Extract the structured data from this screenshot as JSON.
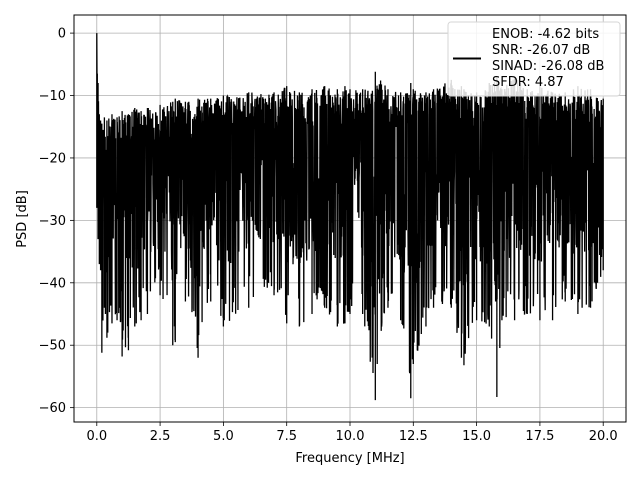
{
  "chart_data": {
    "type": "line",
    "title": "",
    "xlabel": "Frequency [MHz]",
    "ylabel": "PSD [dB]",
    "xlim": [
      -0.9,
      20.9
    ],
    "ylim": [
      -62.3,
      2.9
    ],
    "x_ticks": [
      0.0,
      2.5,
      5.0,
      7.5,
      10.0,
      12.5,
      15.0,
      17.5,
      20.0
    ],
    "x_tick_labels": [
      "0.0",
      "2.5",
      "5.0",
      "7.5",
      "10.0",
      "12.5",
      "15.0",
      "17.5",
      "20.0"
    ],
    "y_ticks": [
      0,
      -10,
      -20,
      -30,
      -40,
      -50,
      -60
    ],
    "y_tick_labels": [
      "0",
      "−10",
      "−20",
      "−30",
      "−40",
      "−50",
      "−60"
    ],
    "grid": true,
    "line_color": "#000000",
    "legend_position": "top-right",
    "legend_lines": [
      "ENOB: -4.62 bits",
      "SNR: -26.07 dB",
      "SINAD: -26.08 dB",
      "SFDR: 4.87"
    ],
    "series": [
      {
        "x": [
          0.0,
          0.02,
          0.05,
          0.1,
          0.15,
          0.2,
          0.3,
          0.4,
          0.6,
          0.8,
          1.0,
          1.25,
          1.5,
          1.75,
          2.0,
          2.5,
          3.0,
          3.1,
          3.5,
          4.0,
          4.5,
          5.0,
          6.0,
          7.0,
          7.5,
          8.0,
          8.5,
          9.0,
          9.5,
          9.8,
          10.0,
          10.5,
          11.0,
          11.5,
          12.0,
          12.4,
          12.5,
          13.0,
          13.3,
          14.0,
          14.4,
          14.5,
          15.0,
          15.5,
          15.8,
          16.0,
          16.5,
          17.0,
          17.5,
          18.0,
          18.5,
          19.0,
          19.5,
          20.0
        ],
        "upper": [
          0.0,
          -6.5,
          -8.0,
          -13.0,
          -14.0,
          -14.5,
          -13.5,
          -14.0,
          -13.0,
          -13.5,
          -12.5,
          -13.0,
          -12.0,
          -12.5,
          -12.0,
          -11.5,
          -11.0,
          -10.5,
          -11.0,
          -10.5,
          -10.5,
          -10.0,
          -9.5,
          -9.5,
          -8.5,
          -9.5,
          -9.0,
          -8.5,
          -9.0,
          -8.5,
          -9.0,
          -9.0,
          -6.2,
          -9.0,
          -9.5,
          -8.0,
          -9.0,
          -9.5,
          -9.0,
          -7.5,
          -8.5,
          -9.0,
          -9.5,
          -8.0,
          -7.0,
          -9.0,
          -7.0,
          -9.0,
          -8.5,
          -9.5,
          -9.5,
          -8.5,
          -9.0,
          -10.5
        ],
        "lower": [
          -28.0,
          -27.0,
          -33.0,
          -37.0,
          -38.0,
          -51.2,
          -44.0,
          -48.8,
          -46.5,
          -46.0,
          -51.8,
          -50.8,
          -47.0,
          -46.0,
          -45.0,
          -42.0,
          -50.0,
          -49.5,
          -43.0,
          -52.0,
          -43.0,
          -47.0,
          -44.0,
          -42.0,
          -46.5,
          -47.0,
          -45.0,
          -44.0,
          -47.0,
          -46.5,
          -45.0,
          -45.0,
          -58.8,
          -44.0,
          -46.0,
          -58.5,
          -53.0,
          -47.0,
          -44.0,
          -44.0,
          -52.0,
          -53.2,
          -46.0,
          -47.0,
          -58.3,
          -46.0,
          -46.0,
          -45.0,
          -46.0,
          -46.0,
          -43.0,
          -45.0,
          -44.0,
          -38.0
        ]
      }
    ]
  }
}
